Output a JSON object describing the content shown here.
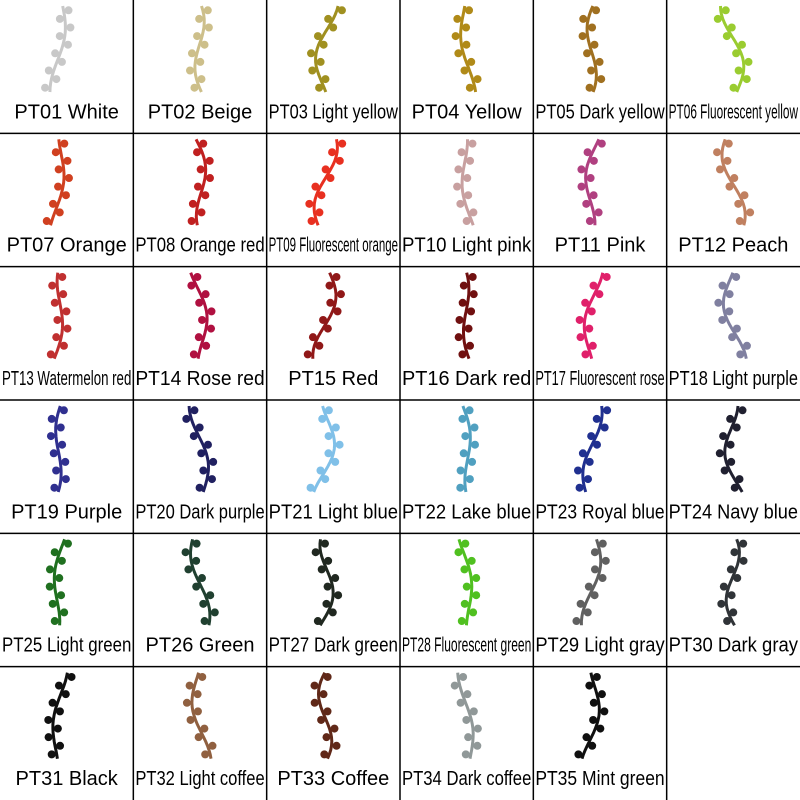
{
  "swatches": [
    {
      "label": "PT01 White",
      "color": "#c8c8c8"
    },
    {
      "label": "PT02 Beige",
      "color": "#cdbf8a"
    },
    {
      "label": "PT03 Light yellow",
      "color": "#a09020"
    },
    {
      "label": "PT04 Yellow",
      "color": "#b08a18"
    },
    {
      "label": "PT05 Dark yellow",
      "color": "#a07020"
    },
    {
      "label": "PT06 Fluorescent yellow",
      "color": "#9acc30"
    },
    {
      "label": "PT07 Orange",
      "color": "#d04020"
    },
    {
      "label": "PT08 Orange red",
      "color": "#c02020"
    },
    {
      "label": "PT09 Fluorescent orange",
      "color": "#e83020"
    },
    {
      "label": "PT10 Light pink",
      "color": "#c8a0a0"
    },
    {
      "label": "PT11 Pink",
      "color": "#b04080"
    },
    {
      "label": "PT12 Peach",
      "color": "#c08060"
    },
    {
      "label": "PT13 Watermelon red",
      "color": "#c03030"
    },
    {
      "label": "PT14 Rose red",
      "color": "#b01040"
    },
    {
      "label": "PT15 Red",
      "color": "#901818"
    },
    {
      "label": "PT16 Dark red",
      "color": "#701010"
    },
    {
      "label": "PT17 Fluorescent rose",
      "color": "#e0206a"
    },
    {
      "label": "PT18 Light purple",
      "color": "#8080a0"
    },
    {
      "label": "PT19 Purple",
      "color": "#303090"
    },
    {
      "label": "PT20 Dark purple",
      "color": "#202060"
    },
    {
      "label": "PT21 Light blue",
      "color": "#80c0e8"
    },
    {
      "label": "PT22 Lake blue",
      "color": "#50a0c0"
    },
    {
      "label": "PT23 Royal blue",
      "color": "#203090"
    },
    {
      "label": "PT24 Navy blue",
      "color": "#202030"
    },
    {
      "label": "PT25 Light green",
      "color": "#207020"
    },
    {
      "label": "PT26 Green",
      "color": "#204030"
    },
    {
      "label": "PT27 Dark green",
      "color": "#202820"
    },
    {
      "label": "PT28 Fluorescent green",
      "color": "#50c020"
    },
    {
      "label": "PT29 Light gray",
      "color": "#606060"
    },
    {
      "label": "PT30 Dark gray",
      "color": "#303438"
    },
    {
      "label": "PT31 Black",
      "color": "#101010"
    },
    {
      "label": "PT32 Light coffee",
      "color": "#906040"
    },
    {
      "label": "PT33 Coffee",
      "color": "#602818"
    },
    {
      "label": "PT34 Dark coffee",
      "color": "#909898"
    },
    {
      "label": "PT35 Mint green",
      "color": "#101010"
    }
  ]
}
